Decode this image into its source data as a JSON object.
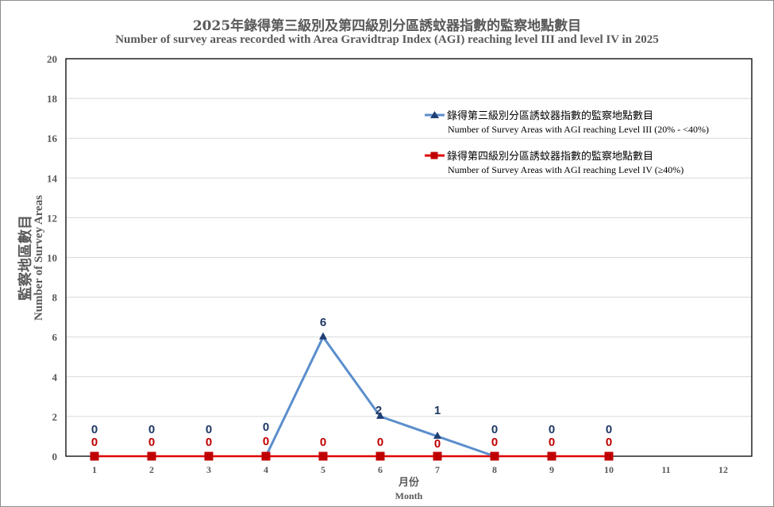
{
  "chart_data": {
    "type": "line",
    "title": "2025年錄得第三級別及第四級別分區誘蚊器指數的監察地點數目",
    "subtitle": "Number of survey areas recorded with  Area Gravidtrap  Index (AGI) reaching  level III and level IV in 2025",
    "xlabel": "月份",
    "xlabel_en": "Month",
    "ylabel": "監察地區數目",
    "ylabel_en": "Number of Survey Areas",
    "x": [
      1,
      2,
      3,
      4,
      5,
      6,
      7,
      8,
      9,
      10,
      11,
      12
    ],
    "ylim": [
      0,
      20
    ],
    "yticks": [
      0,
      2,
      4,
      6,
      8,
      10,
      12,
      14,
      16,
      18,
      20
    ],
    "grid": true,
    "legend_position": "upper right (inside plot)",
    "series": [
      {
        "name": "錄得第三級別分區誘蚊器指數的監察地點數目",
        "name_en": "Number of Survey Areas with AGI reaching Level III (20% - <40%)",
        "color": "#5b8ecc",
        "marker_color": "#1f3f73",
        "label_color": "#1f3864",
        "marker": "triangle",
        "x": [
          4,
          5,
          6,
          7,
          8
        ],
        "values": [
          0,
          6,
          2,
          1,
          0
        ],
        "labels": [
          {
            "month": 1,
            "text": "0"
          },
          {
            "month": 2,
            "text": "0"
          },
          {
            "month": 3,
            "text": "0"
          },
          {
            "month": 4,
            "text": "0"
          },
          {
            "month": 5,
            "text": "6"
          },
          {
            "month": 6,
            "text": "2"
          },
          {
            "month": 7,
            "text": "1"
          },
          {
            "month": 8,
            "text": "0"
          },
          {
            "month": 9,
            "text": "0"
          },
          {
            "month": 10,
            "text": "0"
          }
        ]
      },
      {
        "name": "錄得第四級別分區誘蚊器指數的監察地點數目",
        "name_en": "Number of Survey Areas with AGI reaching Level IV (≥40%)",
        "color": "#e00000",
        "marker_color": "#c00000",
        "label_color": "#c00000",
        "marker": "square",
        "x": [
          1,
          2,
          3,
          4,
          5,
          6,
          7,
          8,
          9,
          10
        ],
        "values": [
          0,
          0,
          0,
          0,
          0,
          0,
          0,
          0,
          0,
          0
        ]
      }
    ]
  }
}
